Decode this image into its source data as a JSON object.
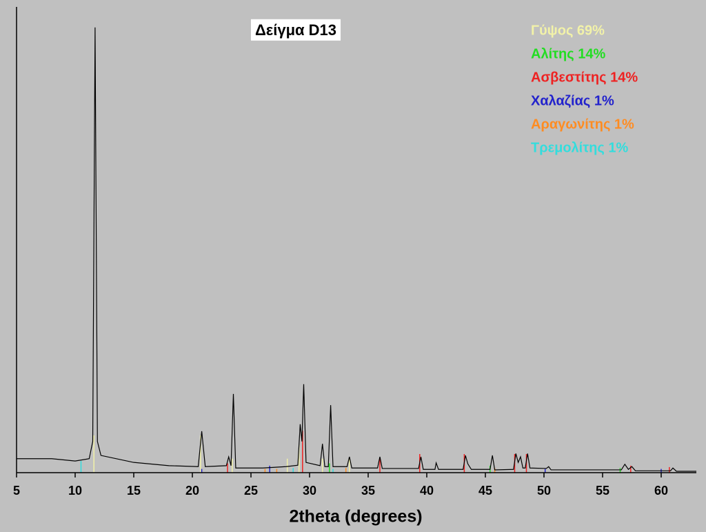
{
  "chart_data": {
    "type": "line",
    "title": "Δείγμα D13",
    "x_label": "2theta (degrees)",
    "xlim": [
      5,
      63
    ],
    "xticks": [
      5,
      10,
      15,
      20,
      25,
      30,
      35,
      40,
      45,
      50,
      55,
      60
    ],
    "ylim": [
      0,
      100
    ],
    "x": [
      5,
      8,
      10,
      11.2,
      11.5,
      11.7,
      11.9,
      12.2,
      15,
      18,
      20.5,
      20.8,
      21.1,
      22.9,
      23.1,
      23.3,
      23.5,
      23.7,
      26,
      28,
      29,
      29.2,
      29.35,
      29.5,
      29.7,
      30.9,
      31.1,
      31.3,
      31.6,
      31.8,
      32,
      33.2,
      33.4,
      33.6,
      35.8,
      36,
      36.2,
      39.3,
      39.5,
      39.7,
      40.7,
      40.8,
      41,
      43.1,
      43.3,
      43.5,
      43.8,
      45.4,
      45.6,
      45.8,
      47.4,
      47.6,
      47.8,
      48,
      48.2,
      48.4,
      48.6,
      48.8,
      50.2,
      50.4,
      50.6,
      56.6,
      56.9,
      57.2,
      57.5,
      57.8,
      60.8,
      61,
      61.3,
      63
    ],
    "series": [
      {
        "color": "#000000",
        "values": [
          3.0,
          3.0,
          2.5,
          3.0,
          6.7,
          95.6,
          6.7,
          3.7,
          2.2,
          1.5,
          1.3,
          8.9,
          1.3,
          1.5,
          3.4,
          1.5,
          16.9,
          1.0,
          1.0,
          1.3,
          1.6,
          10.4,
          6.7,
          19.0,
          2.2,
          1.5,
          6.2,
          1.3,
          1.3,
          14.5,
          1.3,
          1.3,
          3.4,
          1.0,
          1.0,
          3.4,
          0.9,
          0.9,
          3.4,
          0.7,
          0.7,
          2.1,
          0.7,
          0.7,
          3.7,
          1.9,
          0.7,
          0.7,
          3.7,
          0.6,
          0.7,
          4.1,
          2.2,
          3.4,
          1.0,
          1.0,
          4.1,
          1.0,
          0.9,
          1.3,
          0.6,
          0.6,
          1.8,
          0.7,
          1.3,
          0.4,
          0.4,
          1.0,
          0.3,
          0.3
        ]
      }
    ],
    "reference_peaks": [
      {
        "name": "Γύψος 69%",
        "color": "#f2f2a8",
        "positions": [
          11.6,
          20.7,
          23.4,
          29.1,
          31.1,
          33.4,
          28.1
        ],
        "values": [
          8,
          8,
          3,
          6,
          3,
          3,
          3
        ]
      },
      {
        "name": "Αλίτης 14%",
        "color": "#22dd22",
        "positions": [
          31.7,
          45.4,
          56.5
        ],
        "values": [
          2,
          1.5,
          1
        ]
      },
      {
        "name": "Ασβεστίτης 14%",
        "color": "#ee2222",
        "positions": [
          23.0,
          29.4,
          36.0,
          39.4,
          43.2,
          47.5,
          48.5,
          57.4,
          60.7
        ],
        "values": [
          2,
          9,
          3,
          4,
          4,
          4,
          4,
          1.5,
          1.2
        ]
      },
      {
        "name": "Χαλαζίας 1%",
        "color": "#2222cc",
        "positions": [
          20.8,
          26.6,
          50.1,
          60.0
        ],
        "values": [
          0.8,
          1.5,
          0.8,
          0.8
        ]
      },
      {
        "name": "Αραγωνίτης 1%",
        "color": "#ff8c22",
        "positions": [
          26.2,
          27.2,
          33.1,
          45.8
        ],
        "values": [
          0.8,
          0.8,
          1,
          1
        ]
      },
      {
        "name": "Τρεμολίτης 1%",
        "color": "#33dddd",
        "positions": [
          10.5,
          28.6,
          32.0
        ],
        "values": [
          2.5,
          1,
          0.8
        ]
      }
    ]
  }
}
